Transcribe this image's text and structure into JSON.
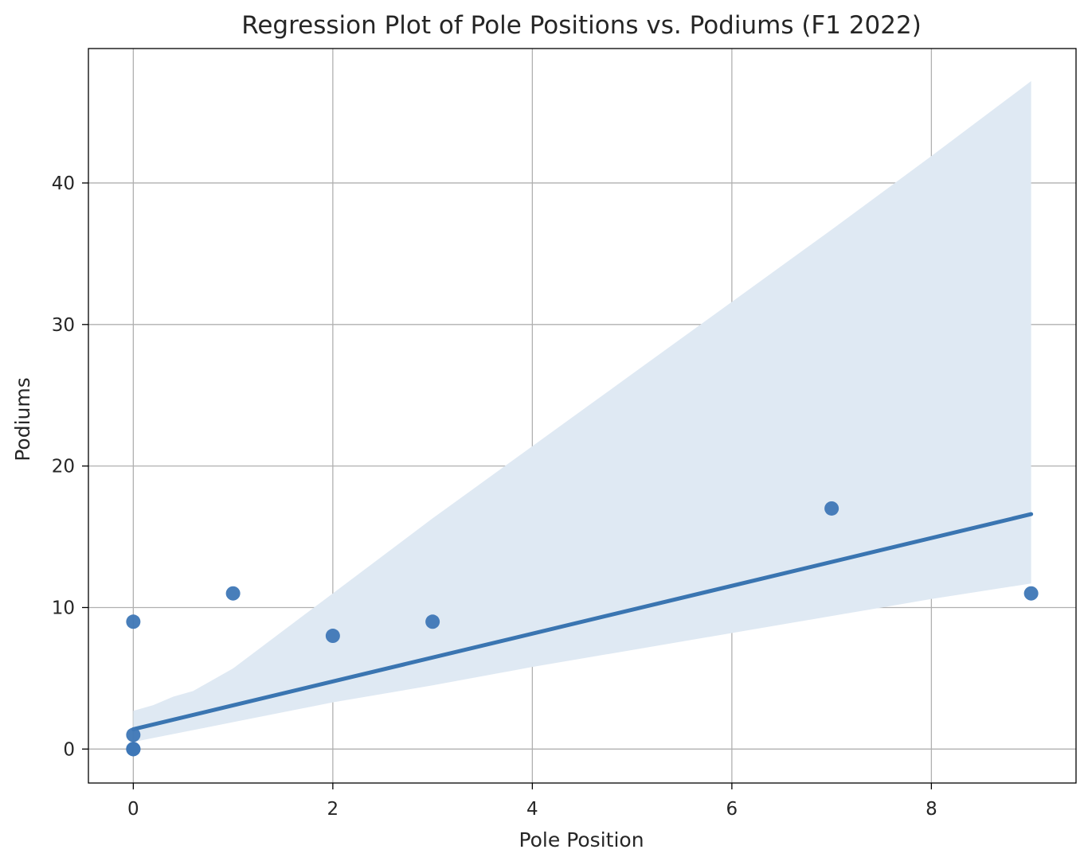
{
  "chart_data": {
    "type": "scatter",
    "title": "Regression Plot of Pole Positions vs. Podiums (F1 2022)",
    "xlabel": "Pole Position",
    "ylabel": "Podiums",
    "xlim": [
      -0.45,
      9.45
    ],
    "ylim": [
      -2.4,
      49.5
    ],
    "xticks": [
      0,
      2,
      4,
      6,
      8
    ],
    "yticks": [
      0,
      10,
      20,
      30,
      40
    ],
    "grid": true,
    "points": [
      {
        "x": 0,
        "y": 9
      },
      {
        "x": 1,
        "y": 11
      },
      {
        "x": 2,
        "y": 8
      },
      {
        "x": 3,
        "y": 9
      },
      {
        "x": 7,
        "y": 17
      },
      {
        "x": 9,
        "y": 11
      },
      {
        "x": 0,
        "y": 1
      },
      {
        "x": 0,
        "y": 0
      },
      {
        "x": 0,
        "y": 0
      },
      {
        "x": 0,
        "y": 0
      }
    ],
    "regression": {
      "line": [
        [
          0,
          1.4
        ],
        [
          9,
          16.6
        ]
      ],
      "ci_upper": [
        [
          0,
          2.7
        ],
        [
          0.2,
          3.1
        ],
        [
          0.4,
          3.7
        ],
        [
          0.6,
          4.1
        ],
        [
          1,
          5.7
        ],
        [
          2,
          11.0
        ],
        [
          3,
          16.3
        ],
        [
          4,
          21.4
        ],
        [
          5,
          26.5
        ],
        [
          6,
          31.6
        ],
        [
          7,
          36.7
        ],
        [
          8,
          41.9
        ],
        [
          9,
          47.2
        ]
      ],
      "ci_lower": [
        [
          0,
          0.5
        ],
        [
          1,
          1.9
        ],
        [
          2,
          3.3
        ],
        [
          3,
          4.5
        ],
        [
          4,
          5.8
        ],
        [
          5,
          7.0
        ],
        [
          6,
          8.2
        ],
        [
          7,
          9.4
        ],
        [
          8,
          10.6
        ],
        [
          9,
          11.7
        ]
      ]
    },
    "colors": {
      "points": "#3e77b6",
      "line": "#3a75b1",
      "band": "#dfe9f3",
      "grid": "#b0b0b0",
      "axes": "#000000",
      "text": "#262626"
    }
  }
}
